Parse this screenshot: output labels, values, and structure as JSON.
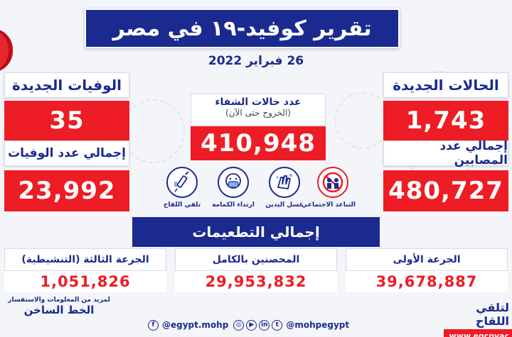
{
  "title": "تقرير كوفيد-١٩ في مصر",
  "date": "26 فبراير 2022",
  "new_cases": {
    "label": "الحالات الجديدة",
    "value": "1,743"
  },
  "total_cases": {
    "label": "إجمالي عدد المصابين",
    "value": "480,727"
  },
  "recovered": {
    "label": "عدد حالات الشفاء",
    "sublabel": "(الخروج حتى الآن)",
    "value": "410,948"
  },
  "new_deaths": {
    "label": "الوفيات الجديدة",
    "value": "35"
  },
  "total_deaths": {
    "label": "إجمالي عدد الوفيات",
    "value": "23,992"
  },
  "prevention": [
    {
      "label": "التباعد الاجتماعي",
      "icon": "social-distancing-icon"
    },
    {
      "label": "غسل اليدين",
      "icon": "hand-washing-icon"
    },
    {
      "label": "ارتداء الكمامة",
      "icon": "mask-icon"
    },
    {
      "label": "تلقي اللقاح",
      "icon": "vaccine-icon"
    }
  ],
  "vaccinations": {
    "title": "إجمالي التطعيمات",
    "first_dose": {
      "label": "الجرعة الأولى",
      "value": "39,678,887"
    },
    "fully_vaccinated": {
      "label": "المحصنين بالكامل",
      "value": "29,953,832"
    },
    "booster": {
      "label": "الجرعة الثالثة (التنشيطية)",
      "value": "1,051,826"
    }
  },
  "footer": {
    "hotline_sub": "لمزيد من المعلومات والاستفسار",
    "hotline_title": "الخط الساخن",
    "handle_facebook": "@egypt.mohp",
    "handle_social": "@mohpegypt",
    "vaccine_cta": "لتلقي اللقاح",
    "vaccine_url": "www.egcovac"
  },
  "colors": {
    "primary": "#1a2a8f",
    "accent": "#ee1c24"
  }
}
